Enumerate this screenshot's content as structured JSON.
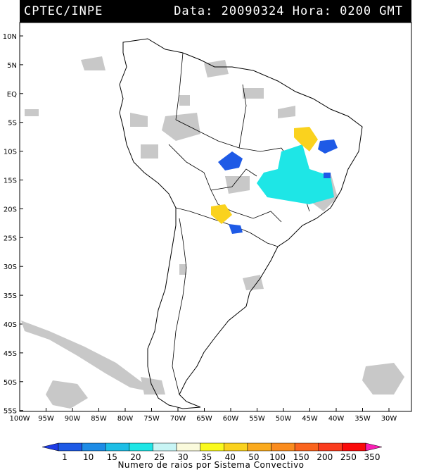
{
  "header": {
    "left": "CPTEC/INPE",
    "right": "Data: 20090324 Hora: 0200 GMT"
  },
  "map": {
    "lat_labels": [
      "10N",
      "5N",
      "EQ",
      "5S",
      "10S",
      "15S",
      "20S",
      "25S",
      "30S",
      "35S",
      "40S",
      "45S",
      "50S",
      "55S"
    ],
    "lon_labels": [
      "100W",
      "95W",
      "90W",
      "85W",
      "80W",
      "75W",
      "70W",
      "65W",
      "60W",
      "55W",
      "50W",
      "45W",
      "40W",
      "35W",
      "30W"
    ]
  },
  "colorbar": {
    "labels": [
      "1",
      "10",
      "15",
      "20",
      "25",
      "30",
      "35",
      "40",
      "50",
      "100",
      "150",
      "200",
      "250",
      "350"
    ],
    "colors": [
      "#1e3ce6",
      "#1e5ae6",
      "#1e8ce6",
      "#1ebee6",
      "#1ee6e6",
      "#c8f5f5",
      "#fafadc",
      "#fafa1e",
      "#fad21e",
      "#faaa1e",
      "#fa8c1e",
      "#fa641e",
      "#fa3c1e",
      "#fa0a0a",
      "#fa1eb4"
    ],
    "title": "Numero de raios por Sistema Convectivo"
  }
}
